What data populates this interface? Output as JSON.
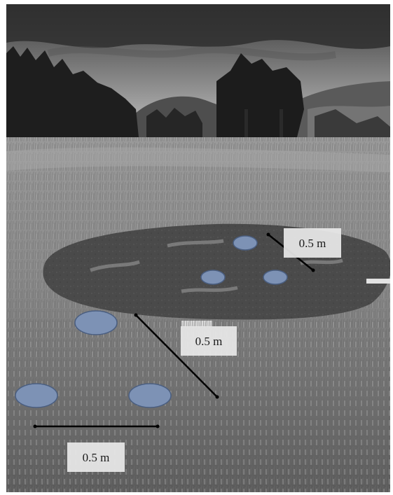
{
  "image": {
    "style": "grayscale",
    "colors": {
      "plot_fill": "#7d92b5",
      "plot_stroke": "#4a5e80",
      "line": "#000000",
      "label_bg": "#e8e8e8"
    }
  },
  "annotations": {
    "scale_labels": [
      "0.5 m",
      "0.5 m",
      "0.5 m"
    ]
  }
}
